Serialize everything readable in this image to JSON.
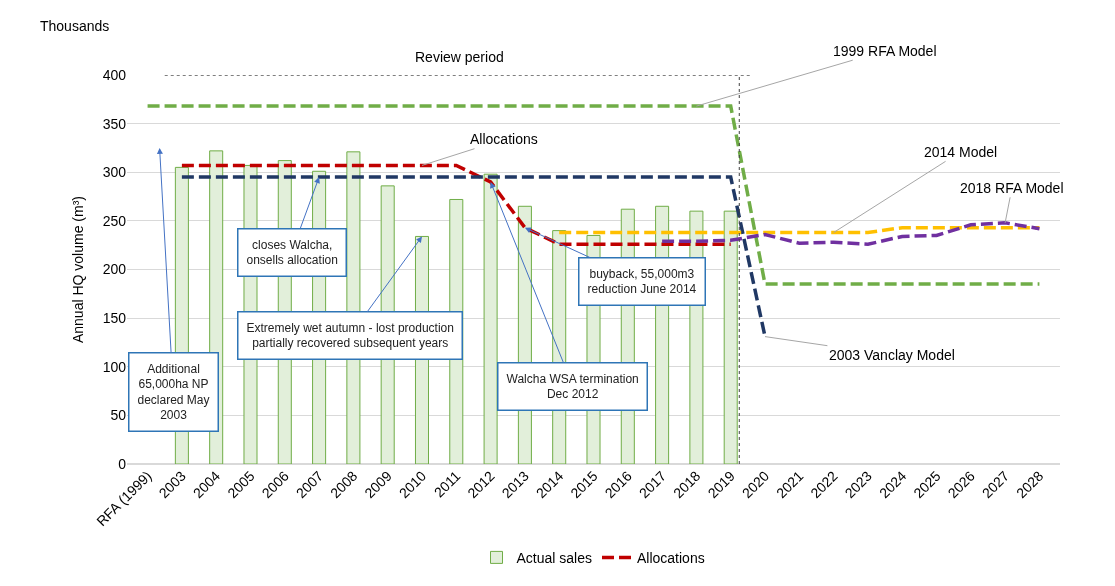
{
  "chart_data": {
    "type": "bar",
    "ylabel": "Annual HQ volume (m³)",
    "categories": [
      "RFA (1999)",
      "2003",
      "2004",
      "2005",
      "2006",
      "2007",
      "2008",
      "2009",
      "2010",
      "2011",
      "2012",
      "2013",
      "2014",
      "2015",
      "2016",
      "2017",
      "2018",
      "2019",
      "2020",
      "2021",
      "2022",
      "2023",
      "2024",
      "2025",
      "2026",
      "2027",
      "2028"
    ],
    "series": [
      {
        "name": "Actual sales",
        "color": "#e2efda",
        "values": [
          null,
          305,
          322,
          307,
          312,
          301,
          321,
          286,
          234,
          272,
          298,
          265,
          240,
          235,
          262,
          265,
          260,
          260,
          null,
          null,
          null,
          null,
          null,
          null,
          null,
          null,
          null
        ]
      },
      {
        "name": "Allocations",
        "type": "line",
        "color": "#c00000",
        "line_style": "dashed",
        "values": [
          null,
          307,
          307,
          307,
          307,
          307,
          307,
          307,
          307,
          307,
          290,
          243,
          226,
          226,
          226,
          226,
          226,
          226,
          null,
          null,
          null,
          null,
          null,
          null,
          null,
          null,
          null
        ]
      },
      {
        "type": "line",
        "color": "#70ad47",
        "line_style": "dashed",
        "values": [
          368,
          368,
          368,
          368,
          368,
          368,
          368,
          368,
          368,
          368,
          368,
          368,
          368,
          368,
          368,
          368,
          368,
          368,
          185,
          185,
          185,
          185,
          185,
          185,
          185,
          185,
          185
        ]
      },
      {
        "type": "line",
        "color": "#203864",
        "line_style": "dashed",
        "values": [
          null,
          295,
          295,
          295,
          295,
          295,
          295,
          295,
          295,
          295,
          295,
          295,
          295,
          295,
          295,
          295,
          295,
          295,
          131,
          null,
          null,
          null,
          null,
          null,
          null,
          null,
          null
        ]
      },
      {
        "type": "line",
        "color": "#ffc000",
        "line_style": "dashed",
        "values": [
          null,
          null,
          null,
          null,
          null,
          null,
          null,
          null,
          null,
          null,
          null,
          null,
          238,
          238,
          238,
          238,
          238,
          238,
          238,
          238,
          238,
          238,
          243,
          243,
          243,
          243,
          243
        ]
      },
      {
        "type": "line",
        "color": "#7030a0",
        "line_style": "dashed",
        "values": [
          null,
          null,
          null,
          null,
          null,
          null,
          null,
          null,
          null,
          null,
          null,
          null,
          null,
          null,
          null,
          229,
          229,
          230,
          236,
          227,
          228,
          226,
          234,
          235,
          246,
          248,
          242
        ]
      }
    ],
    "ylim": [
      0,
      400
    ],
    "yticks": [
      0,
      50,
      100,
      150,
      200,
      250,
      300,
      350,
      400
    ],
    "grid": "y",
    "legend": "bottom",
    "ref_lines": [
      {
        "axis": "x",
        "value": "2019",
        "line_style": "dotted",
        "color": "#404040"
      }
    ],
    "annotations": [
      "Thousands",
      "Review period",
      {
        "text": "Allocations",
        "x": "2010",
        "y": 307
      },
      {
        "text": "1999 RFA Model",
        "x": "2018",
        "y": 368
      },
      {
        "text": "2014 Model",
        "x": "2022",
        "y": 238
      },
      {
        "text": "2018 RFA Model",
        "x": "2027",
        "y": 248
      },
      {
        "text": "2003 Vanclay Model",
        "x": "2020",
        "y": 131
      },
      "Additional\n65,000ha NP\ndeclared May\n2003",
      {
        "text": "closes Walcha,\nonsells allocation",
        "x": "2007",
        "y": 295
      },
      {
        "text": "Extremely wet autumn - lost production\npartially recovered subsequent years",
        "x": "2010",
        "y": 234
      },
      {
        "text": "Walcha WSA termination\nDec 2012",
        "x": "2012",
        "y": 290
      },
      {
        "text": "buyback, 55,000m3\nreduction June 2014",
        "x": "2013",
        "y": 243
      }
    ]
  }
}
